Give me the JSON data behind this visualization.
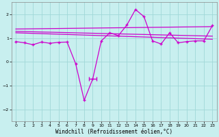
{
  "xlabel": "Windchill (Refroidissement éolien,°C)",
  "background_color": "#c8efef",
  "grid_color": "#a0d8d8",
  "line_color": "#cc00cc",
  "xlim": [
    -0.5,
    23.5
  ],
  "ylim": [
    -2.5,
    2.5
  ],
  "xticks": [
    0,
    1,
    2,
    3,
    4,
    5,
    6,
    7,
    8,
    9,
    10,
    11,
    12,
    13,
    14,
    15,
    16,
    17,
    18,
    19,
    20,
    21,
    22,
    23
  ],
  "yticks": [
    -2,
    -1,
    0,
    1,
    2
  ],
  "series1_x": [
    0,
    1,
    2,
    3,
    4,
    5,
    6,
    7,
    8,
    9,
    10,
    11,
    12,
    13,
    14,
    15,
    16,
    17,
    18,
    19,
    20,
    21,
    22,
    23
  ],
  "series1_y": [
    0.85,
    0.8,
    0.72,
    0.83,
    0.78,
    0.82,
    0.83,
    -0.08,
    -1.62,
    -0.72,
    0.88,
    1.22,
    1.1,
    1.55,
    2.2,
    1.9,
    0.88,
    0.75,
    1.22,
    0.8,
    0.85,
    0.88,
    0.88,
    1.52
  ],
  "trend1_x": [
    0,
    23
  ],
  "trend1_y": [
    1.38,
    1.48
  ],
  "trend2_x": [
    0,
    23
  ],
  "trend2_y": [
    1.28,
    1.08
  ],
  "trend3_x": [
    0,
    23
  ],
  "trend3_y": [
    1.22,
    0.95
  ],
  "errorbar_x": [
    9.0
  ],
  "errorbar_y": [
    -0.72
  ],
  "errorbar_xerr": [
    0.45
  ]
}
